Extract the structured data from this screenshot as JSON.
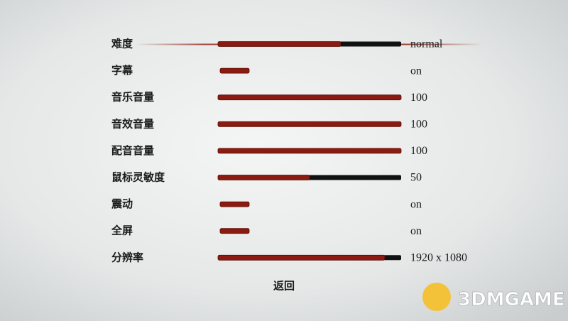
{
  "settings": [
    {
      "label": "难度",
      "value": "normal",
      "fill": 0.67
    },
    {
      "label": "字幕",
      "value": "on"
    },
    {
      "label": "音乐音量",
      "value": "100",
      "fill": 1
    },
    {
      "label": "音效音量",
      "value": "100",
      "fill": 1
    },
    {
      "label": "配音音量",
      "value": "100",
      "fill": 1
    },
    {
      "label": "鼠标灵敏度",
      "value": "50",
      "fill": 0.5
    },
    {
      "label": "震动",
      "value": "on"
    },
    {
      "label": "全屏",
      "value": "on"
    },
    {
      "label": "分辨率",
      "value": "1920 x 1080",
      "fill": 0.91
    }
  ],
  "back": "返回",
  "watermark": "3DMGAME"
}
